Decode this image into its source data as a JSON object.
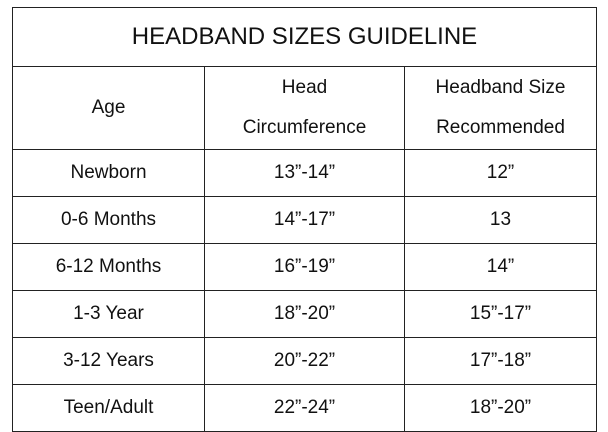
{
  "title": "HEADBAND SIZES GUIDELINE",
  "headers": {
    "age": "Age",
    "head_line1": "Head",
    "head_line2": "Circumference",
    "band_line1": "Headband Size",
    "band_line2": "Recommended"
  },
  "rows": [
    {
      "age": "Newborn",
      "head": "13”-14”",
      "band": "12”"
    },
    {
      "age": "0-6 Months",
      "head": "14”-17”",
      "band": "13"
    },
    {
      "age": "6-12 Months",
      "head": "16”-19”",
      "band": "14”"
    },
    {
      "age": "1-3 Year",
      "head": "18”-20”",
      "band": "15”-17”"
    },
    {
      "age": "3-12 Years",
      "head": "20”-22”",
      "band": "17”-18”"
    },
    {
      "age": "Teen/Adult",
      "head": "22”-24”",
      "band": "18”-20”"
    }
  ]
}
